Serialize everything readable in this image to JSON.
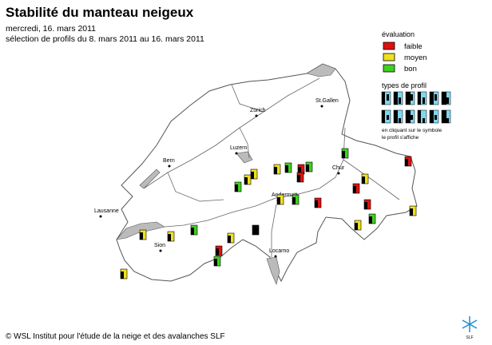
{
  "header": {
    "title": "Stabilité du manteau neigeux",
    "date": "mercredi, 16. mars 2011",
    "selection": "sélection de profils du 8. mars 2011 au 16. mars 2011"
  },
  "legend": {
    "title": "évaluation",
    "items": [
      {
        "label": "faible",
        "color": "#e01010"
      },
      {
        "label": "moyen",
        "color": "#f0e020"
      },
      {
        "label": "bon",
        "color": "#40d020"
      }
    ]
  },
  "profile_types": {
    "title": "types de profil",
    "note": [
      "en cliquant sur le symbole",
      "le profil s'affiche"
    ]
  },
  "cities": [
    "Zürich",
    "St.Gallen",
    "Luzern",
    "Bern",
    "Chur",
    "Andermatt",
    "Lausanne",
    "Sion",
    "Locarno"
  ],
  "footer": {
    "copyright": "© WSL Institut pour l'étude de la neige et des avalanches SLF",
    "logo": "SLF"
  }
}
